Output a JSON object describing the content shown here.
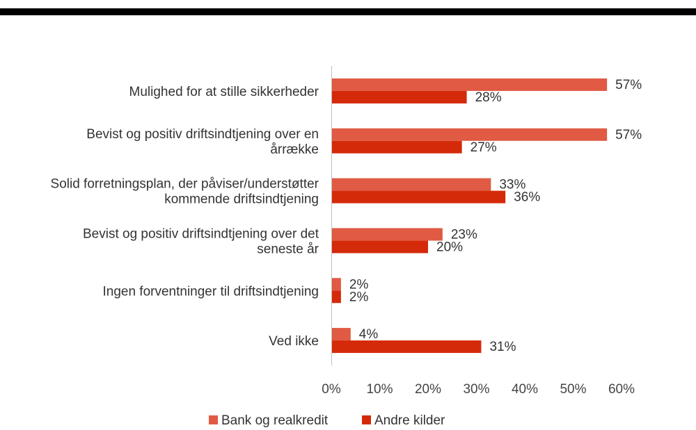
{
  "colors": {
    "bank": "#E05A44",
    "andre": "#D42A0A",
    "axis": "#BFBFBF",
    "rule": "#000000"
  },
  "legend": [
    {
      "label": "Bank og realkredit",
      "color": "#E05A44"
    },
    {
      "label": "Andre kilder",
      "color": "#D42A0A"
    }
  ],
  "chart_data": {
    "type": "bar",
    "orientation": "horizontal",
    "categories": [
      [
        "Mulighed for at stille sikkerheder"
      ],
      [
        "Bevist og positiv driftsindtjening over en",
        "årrække"
      ],
      [
        "Solid forretningsplan, der påviser/understøtter",
        "kommende driftsindtjening"
      ],
      [
        "Bevist og positiv driftsindtjening over det",
        "seneste år"
      ],
      [
        "Ingen forventninger til driftsindtjening"
      ],
      [
        "Ved ikke"
      ]
    ],
    "series": [
      {
        "name": "Bank og realkredit",
        "values": [
          57,
          57,
          33,
          23,
          2,
          4
        ],
        "labels": [
          "57%",
          "57%",
          "33%",
          "23%",
          "2%",
          "4%"
        ]
      },
      {
        "name": "Andre kilder",
        "values": [
          28,
          27,
          36,
          20,
          2,
          31
        ],
        "labels": [
          "28%",
          "27%",
          "36%",
          "20%",
          "2%",
          "31%"
        ]
      }
    ],
    "xlim": [
      0,
      60
    ],
    "ticks": [
      "0%",
      "10%",
      "20%",
      "30%",
      "40%",
      "50%",
      "60%"
    ],
    "grid": false,
    "legend_position": "bottom"
  }
}
